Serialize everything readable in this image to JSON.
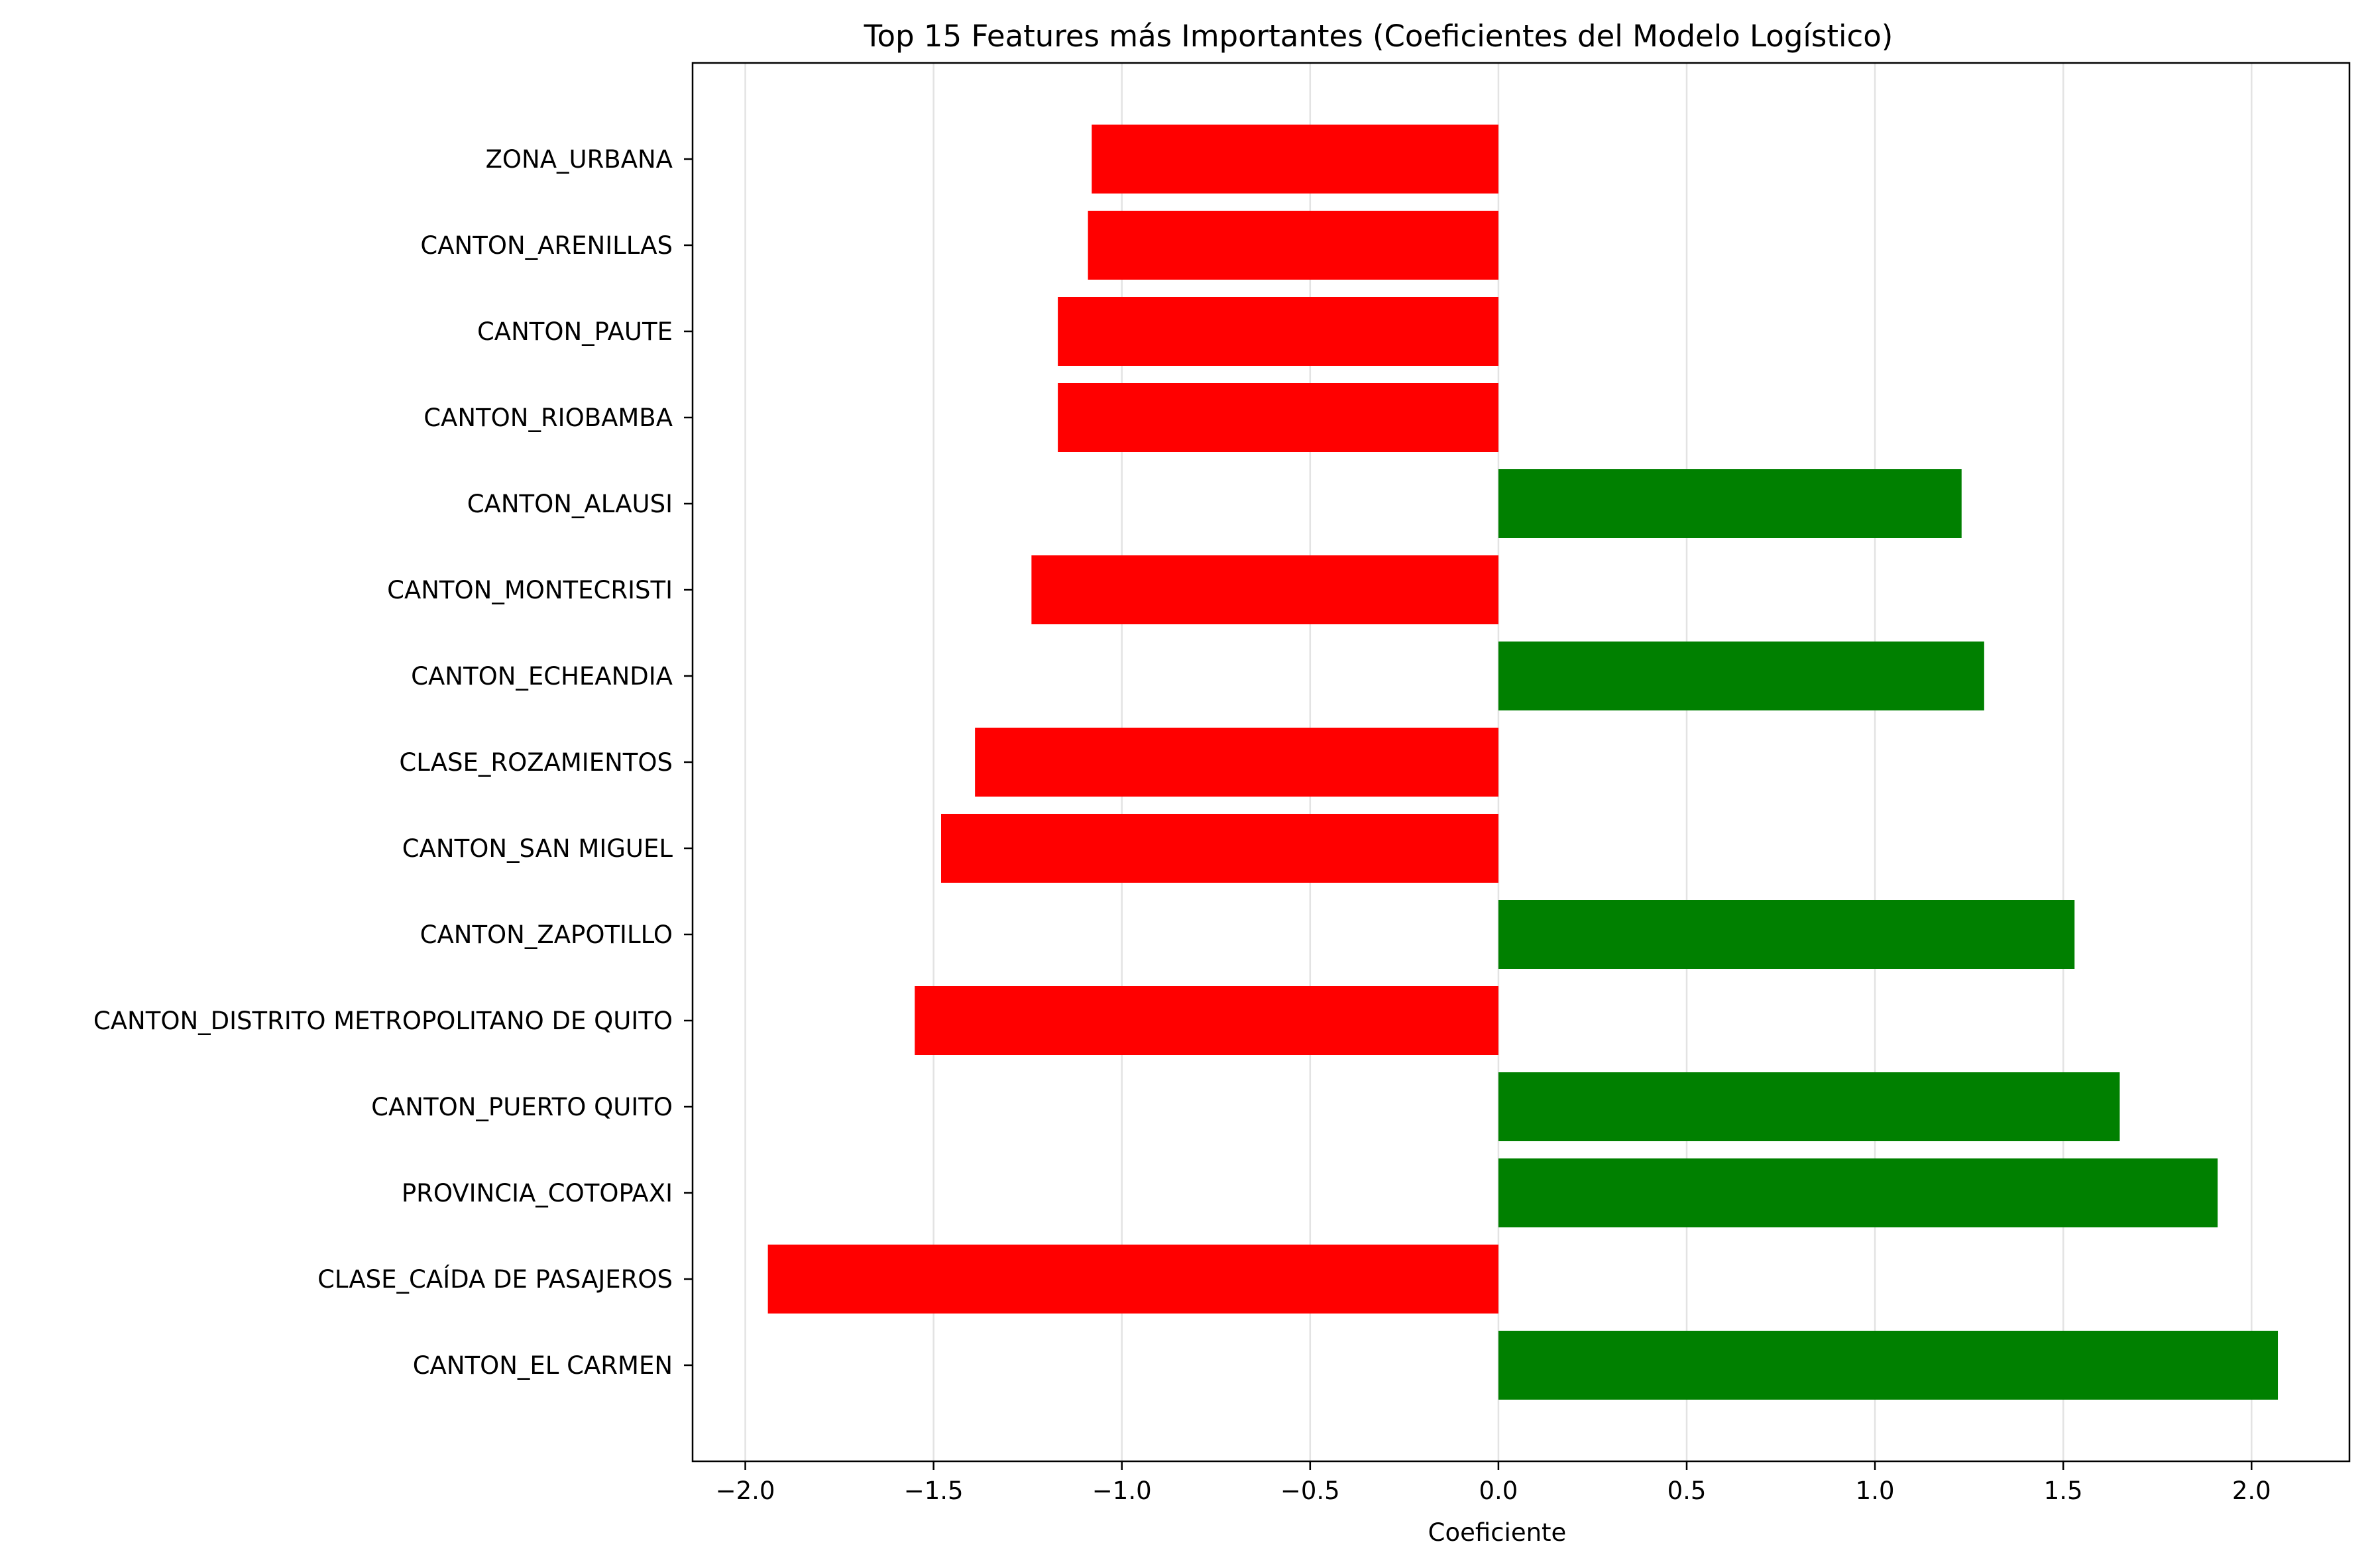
{
  "colors": {
    "positive": "#008000",
    "negative": "#ff0000",
    "grid": "#e3e3e3",
    "axes": "#000000",
    "background": "#ffffff"
  },
  "chart_data": {
    "type": "bar",
    "orientation": "horizontal",
    "title": "Top 15 Features más Importantes (Coeficientes del Modelo Logístico)",
    "xlabel": "Coeficiente",
    "ylabel": "",
    "xlim": [
      -2.14,
      2.26
    ],
    "x_ticks": [
      -2.0,
      -1.5,
      -1.0,
      -0.5,
      0.0,
      0.5,
      1.0,
      1.5,
      2.0
    ],
    "x_tick_labels": [
      "−2.0",
      "−1.5",
      "−1.0",
      "−0.5",
      "0.0",
      "0.5",
      "1.0",
      "1.5",
      "2.0"
    ],
    "grid": "x-axis vertical lines",
    "legend": "none",
    "categories": [
      "ZONA_URBANA",
      "CANTON_ARENILLAS",
      "CANTON_PAUTE",
      "CANTON_RIOBAMBA",
      "CANTON_ALAUSI",
      "CANTON_MONTECRISTI",
      "CANTON_ECHEANDIA",
      "CLASE_ROZAMIENTOS",
      "CANTON_SAN MIGUEL",
      "CANTON_ZAPOTILLO",
      "CANTON_DISTRITO METROPOLITANO DE QUITO",
      "CANTON_PUERTO QUITO",
      "PROVINCIA_COTOPAXI",
      "CLASE_CAÍDA DE PASAJEROS",
      "CANTON_EL CARMEN"
    ],
    "values": [
      -1.08,
      -1.09,
      -1.17,
      -1.17,
      1.23,
      -1.24,
      1.29,
      -1.39,
      -1.48,
      1.53,
      -1.55,
      1.65,
      1.91,
      -1.94,
      2.07
    ]
  }
}
